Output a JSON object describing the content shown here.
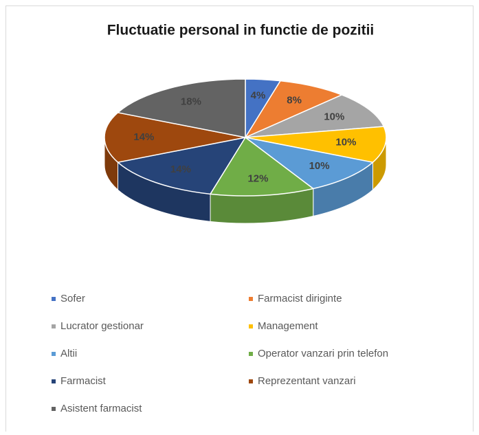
{
  "chart_data": {
    "type": "pie3d",
    "title": "Fluctuatie personal in functie de pozitii",
    "categories": [
      "Sofer",
      "Farmacist diriginte",
      "Lucrator gestionar",
      "Management",
      "Altii",
      "Operator vanzari prin telefon",
      "Farmacist",
      "Reprezentant vanzari",
      "Asistent farmacist"
    ],
    "values": [
      4,
      8,
      10,
      10,
      10,
      12,
      14,
      14,
      18
    ],
    "value_labels": [
      "4%",
      "8%",
      "10%",
      "10%",
      "10%",
      "12%",
      "14%",
      "14%",
      "18%"
    ],
    "colors": [
      "#4472c4",
      "#ed7d31",
      "#a5a5a5",
      "#ffc000",
      "#5b9bd5",
      "#70ad47",
      "#264478",
      "#9e480e",
      "#636363"
    ],
    "legend": "bottom"
  }
}
